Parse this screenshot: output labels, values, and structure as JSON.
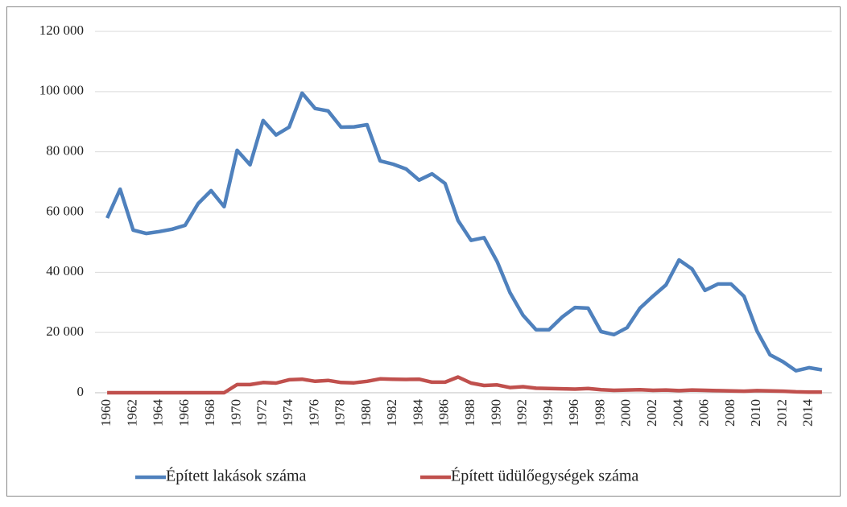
{
  "chart_data": {
    "type": "line",
    "categories": [
      "1960",
      null,
      "1962",
      null,
      "1964",
      null,
      "1966",
      null,
      "1968",
      null,
      "1970",
      null,
      "1972",
      null,
      "1974",
      null,
      "1976",
      null,
      "1978",
      null,
      "1980",
      null,
      "1982",
      null,
      "1984",
      null,
      "1986",
      null,
      "1988",
      null,
      "1990",
      null,
      "1992",
      null,
      "1994",
      null,
      "1996",
      null,
      "1998",
      null,
      "2000",
      null,
      "2002",
      null,
      "2004",
      null,
      "2006",
      null,
      "2008",
      null,
      "2010",
      null,
      "2012",
      null,
      "2014",
      null
    ],
    "series": [
      {
        "name": "Épített lakások száma",
        "color": "#4f81bd",
        "values": [
          58000,
          67600,
          54000,
          52900,
          53500,
          54300,
          55600,
          62800,
          67100,
          61800,
          80500,
          75700,
          90400,
          85600,
          88200,
          99500,
          94400,
          93600,
          88200,
          88300,
          89000,
          77000,
          75900,
          74300,
          70600,
          72700,
          69500,
          57200,
          50600,
          51500,
          43600,
          33200,
          25700,
          20900,
          20900,
          25100,
          28300,
          28100,
          20300,
          19300,
          21600,
          28100,
          32100,
          35800,
          44100,
          41100,
          34000,
          36100,
          36100,
          32000,
          20500,
          12600,
          10300,
          7300,
          8300,
          7600
        ]
      },
      {
        "name": "Épített üdülőegységek száma",
        "color": "#c0504d",
        "values": [
          0,
          0,
          0,
          0,
          0,
          0,
          0,
          0,
          0,
          0,
          2700,
          2700,
          3400,
          3200,
          4300,
          4500,
          3800,
          4100,
          3400,
          3300,
          3800,
          4600,
          4500,
          4400,
          4500,
          3500,
          3500,
          5200,
          3200,
          2400,
          2600,
          1700,
          2000,
          1500,
          1400,
          1300,
          1200,
          1400,
          1000,
          800,
          900,
          1000,
          800,
          900,
          700,
          900,
          800,
          700,
          600,
          500,
          700,
          600,
          500,
          300,
          200,
          200
        ]
      }
    ],
    "ylim": [
      0,
      120000
    ],
    "yticks": [
      0,
      {
        "value": 20000,
        "label": "20 000"
      },
      {
        "value": 40000,
        "label": "40 000"
      },
      {
        "value": 60000,
        "label": "60 000"
      },
      {
        "value": 80000,
        "label": "80 000"
      },
      {
        "value": 100000,
        "label": "100 000"
      },
      {
        "value": 120000,
        "label": "120 000"
      }
    ],
    "grid": true,
    "legend": "bottom"
  }
}
